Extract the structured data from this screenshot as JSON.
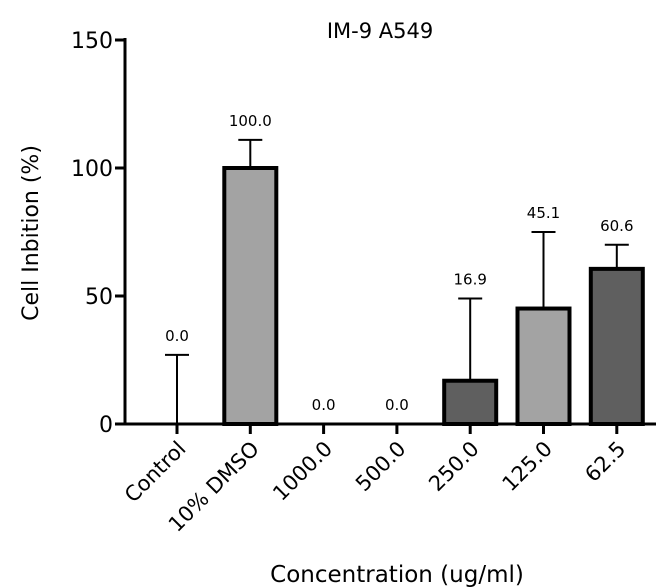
{
  "chart_data": {
    "type": "bar",
    "title": "IM-9 A549",
    "xlabel": "Concentration (ug/ml)",
    "ylabel": "Cell Inbition (%)",
    "ylim": [
      0,
      150
    ],
    "yticks": [
      "0",
      "50",
      "100",
      "150"
    ],
    "grid": false,
    "categories": [
      "Control",
      "10% DMSO",
      "1000.0",
      "500.0",
      "250.0",
      "125.0",
      "62.5"
    ],
    "values": [
      0.0,
      100.0,
      0.0,
      0.0,
      16.9,
      45.1,
      60.6
    ],
    "error_upper": [
      27,
      111,
      0,
      0,
      49,
      75,
      70
    ],
    "data_labels": [
      "0.0",
      "100.0",
      "0.0",
      "0.0",
      "16.9",
      "45.1",
      "60.6"
    ],
    "bar_colors": [
      "#a3a3a3",
      "#a3a3a3",
      "#5f5f5f",
      "#5f5f5f",
      "#5f5f5f",
      "#a3a3a3",
      "#5f5f5f"
    ]
  }
}
